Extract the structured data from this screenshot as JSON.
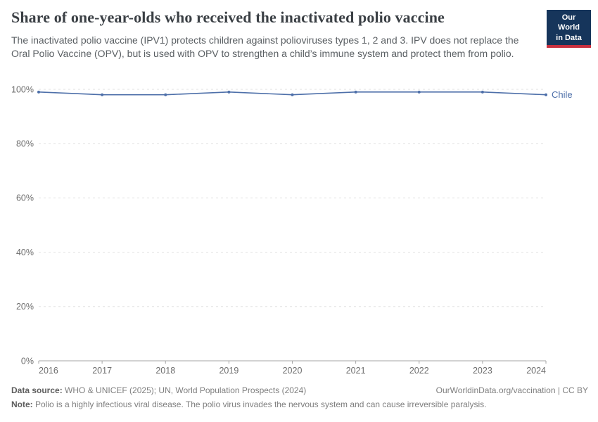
{
  "header": {
    "title": "Share of one-year-olds who received the inactivated polio vaccine",
    "subtitle": "The inactivated polio vaccine (IPV1) protects children against polioviruses types 1, 2 and 3. IPV does not replace the Oral Polio Vaccine (OPV), but is used with OPV to strengthen a child’s immune system and protect them from polio.",
    "logo": {
      "line1": "Our World",
      "line2": "in Data"
    }
  },
  "chart_data": {
    "type": "line",
    "title": "Share of one-year-olds who received the inactivated polio vaccine",
    "xlabel": "",
    "ylabel": "",
    "x": [
      2016,
      2017,
      2018,
      2019,
      2020,
      2021,
      2022,
      2023,
      2024
    ],
    "series": [
      {
        "name": "Chile",
        "values": [
          99,
          98,
          98,
          99,
          98,
          99,
          99,
          99,
          98
        ],
        "color": "#4d6fa9"
      }
    ],
    "ylim": [
      0,
      100
    ],
    "yticks": [
      0,
      20,
      40,
      60,
      80,
      100
    ],
    "ytick_suffix": "%",
    "grid": "horizontal-dashed",
    "legend": "inline-entity-label-right"
  },
  "footer": {
    "data_source_label": "Data source:",
    "data_source": "WHO & UNICEF (2025); UN, World Population Prospects (2024)",
    "link": "OurWorldinData.org/vaccination | CC BY",
    "note_label": "Note:",
    "note": "Polio is a highly infectious viral disease. The polio virus invades the nervous system and can cause irreversible paralysis."
  },
  "colors": {
    "line": "#4d6fa9",
    "logo_bg": "#16355b",
    "logo_stripe": "#c8303f",
    "grid": "#e0e0e0",
    "axis": "#a6a6a6",
    "tick_label": "#6d6d6d",
    "title": "#3a3f44",
    "subtitle": "#5a5f63"
  }
}
